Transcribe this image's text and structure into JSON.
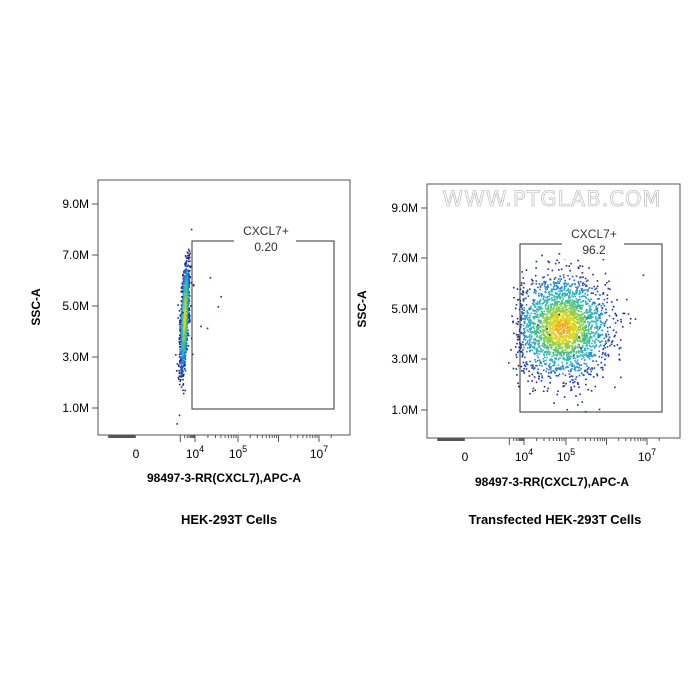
{
  "watermark": "WWW.PTGLAB.COM",
  "colors": {
    "density_low": "#1b2a8f",
    "density_mid1": "#1e88d8",
    "density_mid2": "#3fbf8a",
    "density_high": "#d9d420",
    "axis": "#555555",
    "gate": "#333333"
  },
  "chart_data": [
    {
      "type": "scatter",
      "subtype": "flow-cytometry-density-plot",
      "xlabel": "98497-3-RR(CXCL7),APC-A",
      "ylabel": "SSC-A",
      "caption": "HEK-293T Cells",
      "x_ticks": [
        {
          "label": "0",
          "exp": ""
        },
        {
          "label": "10",
          "exp": "4"
        },
        {
          "label": "10",
          "exp": "5"
        },
        {
          "label": "10",
          "exp": "7"
        }
      ],
      "y_ticks": [
        "1.0M",
        "3.0M",
        "5.0M",
        "7.0M",
        "9.0M"
      ],
      "y_tick_values": [
        1.0,
        3.0,
        5.0,
        7.0,
        9.0
      ],
      "ylim": [
        0,
        10
      ],
      "gate": {
        "name": "CXCL7+",
        "value": "0.20"
      },
      "population": {
        "x_center": 3.25,
        "x_spread": 0.12,
        "y_center": 4.6,
        "y_spread": 1.0,
        "tilt": 0.22,
        "count": 1700
      }
    },
    {
      "type": "scatter",
      "subtype": "flow-cytometry-density-plot",
      "xlabel": "98497-3-RR(CXCL7),APC-A",
      "ylabel": "SSC-A",
      "caption": "Transfected HEK-293T Cells",
      "x_ticks": [
        {
          "label": "0",
          "exp": ""
        },
        {
          "label": "10",
          "exp": "4"
        },
        {
          "label": "10",
          "exp": "5"
        },
        {
          "label": "10",
          "exp": "7"
        }
      ],
      "y_ticks": [
        "1.0M",
        "3.0M",
        "5.0M",
        "7.0M",
        "9.0M"
      ],
      "y_tick_values": [
        1.0,
        3.0,
        5.0,
        7.0,
        9.0
      ],
      "ylim": [
        0,
        10
      ],
      "gate": {
        "name": "CXCL7+",
        "value": "96.2"
      },
      "population": {
        "x_center": 4.9,
        "x_spread": 0.55,
        "y_center": 4.3,
        "y_spread": 0.95,
        "tilt": 0.0,
        "count": 2600
      }
    }
  ]
}
